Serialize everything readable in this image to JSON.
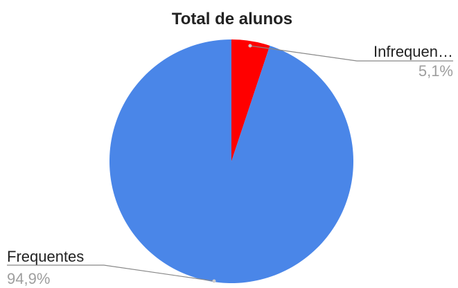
{
  "chart_data": {
    "type": "pie",
    "title": "Total de alunos",
    "slices": [
      {
        "label": "Infrequen…",
        "percent_label": "5,1%",
        "value": 5.1,
        "color": "#ff0000"
      },
      {
        "label": "Frequentes",
        "percent_label": "94,9%",
        "value": 94.9,
        "color": "#4a86e8"
      }
    ],
    "legend": "none (leader-line labels beside slices)",
    "label_line_color": "#888888"
  }
}
